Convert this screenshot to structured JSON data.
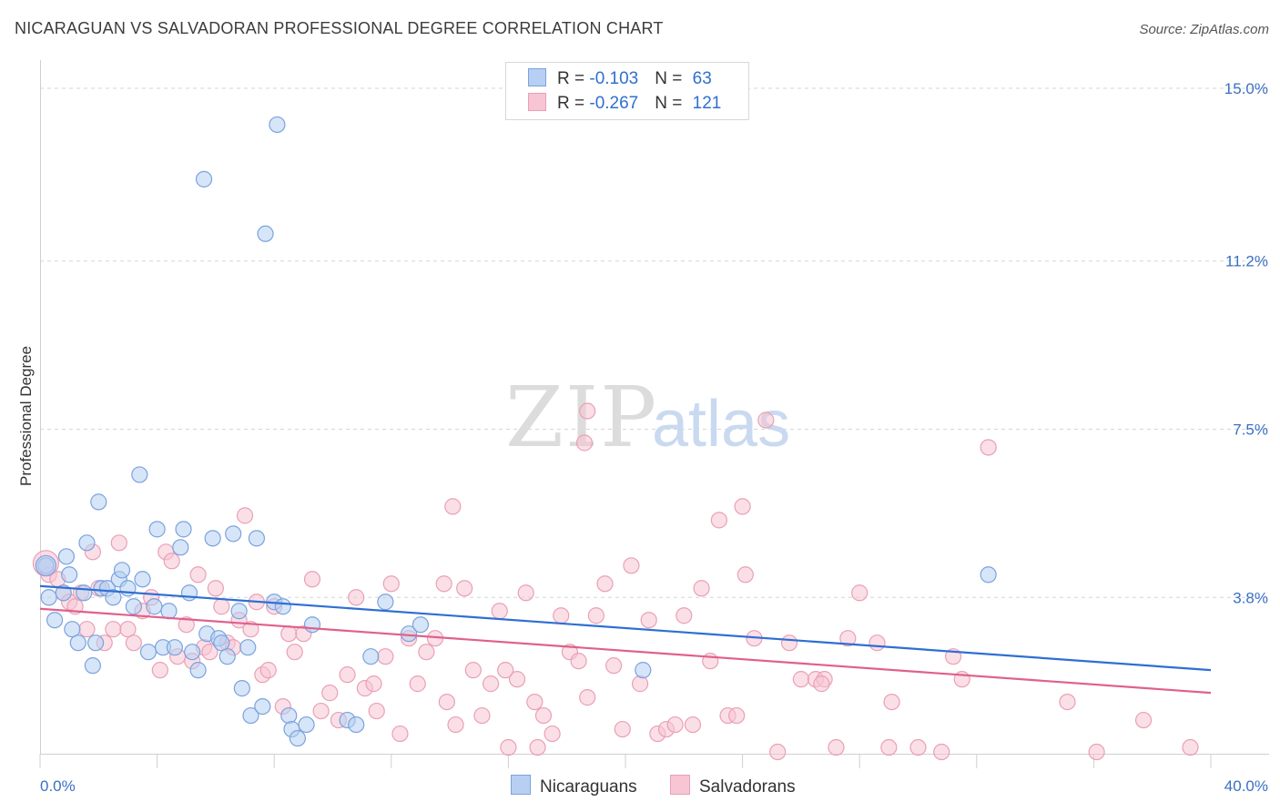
{
  "header": {
    "title": "NICARAGUAN VS SALVADORAN PROFESSIONAL DEGREE CORRELATION CHART",
    "source": "Source: ZipAtlas.com"
  },
  "watermark": {
    "zip": "ZIP",
    "atlas": "atlas"
  },
  "legend": {
    "rows": [
      {
        "r_label": "R = ",
        "r_value": "-0.103",
        "n_label": "N = ",
        "n_value": "63"
      },
      {
        "r_label": "R = ",
        "r_value": "-0.267",
        "n_label": "N = ",
        "n_value": "121"
      }
    ]
  },
  "colors": {
    "blue_fill": "#b7cff3",
    "blue_stroke": "#7aa3dd",
    "blue_line": "#2e6fd3",
    "pink_fill": "#f7c5d4",
    "pink_stroke": "#e9a0b6",
    "pink_line": "#e0608c",
    "grid": "#d6d6d6",
    "tick_text": "#3a6fc4"
  },
  "chart_data": {
    "type": "scatter",
    "title": "NICARAGUAN VS SALVADORAN PROFESSIONAL DEGREE CORRELATION CHART",
    "xlabel": "",
    "ylabel": "Professional Degree",
    "xlim": [
      0,
      40
    ],
    "ylim": [
      0,
      15.7
    ],
    "x_tick_labels": [
      "0.0%",
      "40.0%"
    ],
    "y_ticks": [
      3.8,
      7.5,
      11.2,
      15.0
    ],
    "y_tick_labels": [
      "3.8%",
      "7.5%",
      "11.2%",
      "15.0%"
    ],
    "grid": "horizontal dashed",
    "legend_position": "top-center",
    "series": [
      {
        "name": "Nicaraguans",
        "r": -0.103,
        "n": 63,
        "trend": {
          "x": [
            0,
            40
          ],
          "y": [
            4.05,
            2.2
          ]
        },
        "points": [
          [
            0.2,
            4.5
          ],
          [
            0.3,
            3.8
          ],
          [
            0.5,
            3.3
          ],
          [
            0.8,
            3.9
          ],
          [
            0.9,
            4.7
          ],
          [
            1.1,
            3.1
          ],
          [
            1.3,
            2.8
          ],
          [
            1.5,
            3.9
          ],
          [
            1.6,
            5.0
          ],
          [
            1.8,
            2.3
          ],
          [
            1.9,
            2.8
          ],
          [
            2.1,
            4.0
          ],
          [
            2.3,
            4.0
          ],
          [
            2.5,
            3.8
          ],
          [
            2.7,
            4.2
          ],
          [
            2.8,
            4.4
          ],
          [
            3.0,
            4.0
          ],
          [
            3.2,
            3.6
          ],
          [
            3.4,
            6.5
          ],
          [
            3.5,
            4.2
          ],
          [
            3.7,
            2.6
          ],
          [
            3.9,
            3.6
          ],
          [
            4.0,
            5.3
          ],
          [
            4.2,
            2.7
          ],
          [
            4.4,
            3.5
          ],
          [
            4.6,
            2.7
          ],
          [
            4.8,
            4.9
          ],
          [
            4.9,
            5.3
          ],
          [
            5.1,
            3.9
          ],
          [
            5.2,
            2.6
          ],
          [
            5.4,
            2.2
          ],
          [
            5.6,
            13.0
          ],
          [
            5.7,
            3.0
          ],
          [
            5.9,
            5.1
          ],
          [
            6.1,
            2.9
          ],
          [
            6.2,
            2.8
          ],
          [
            6.4,
            2.5
          ],
          [
            6.6,
            5.2
          ],
          [
            6.8,
            3.5
          ],
          [
            6.9,
            1.8
          ],
          [
            7.1,
            2.7
          ],
          [
            7.2,
            1.2
          ],
          [
            7.4,
            5.1
          ],
          [
            7.6,
            1.4
          ],
          [
            7.7,
            11.8
          ],
          [
            8.0,
            3.7
          ],
          [
            8.1,
            14.2
          ],
          [
            8.3,
            3.6
          ],
          [
            8.5,
            1.2
          ],
          [
            8.6,
            0.9
          ],
          [
            8.8,
            0.7
          ],
          [
            9.1,
            1.0
          ],
          [
            9.3,
            3.2
          ],
          [
            10.5,
            1.1
          ],
          [
            10.8,
            1.0
          ],
          [
            11.3,
            2.5
          ],
          [
            11.8,
            3.7
          ],
          [
            12.6,
            3.0
          ],
          [
            13.0,
            3.2
          ],
          [
            2.0,
            5.9
          ],
          [
            20.6,
            2.2
          ],
          [
            1.0,
            4.3
          ],
          [
            32.4,
            4.3
          ]
        ]
      },
      {
        "name": "Salvadorans",
        "r": -0.267,
        "n": 121,
        "trend": {
          "x": [
            0,
            40
          ],
          "y": [
            3.55,
            1.7
          ]
        },
        "points": [
          [
            0.3,
            4.3
          ],
          [
            0.6,
            4.2
          ],
          [
            0.8,
            3.9
          ],
          [
            1.0,
            3.7
          ],
          [
            1.2,
            3.6
          ],
          [
            1.4,
            3.9
          ],
          [
            1.6,
            3.1
          ],
          [
            1.8,
            4.8
          ],
          [
            2.0,
            4.0
          ],
          [
            2.2,
            2.8
          ],
          [
            2.5,
            3.1
          ],
          [
            2.7,
            5.0
          ],
          [
            3.0,
            3.1
          ],
          [
            3.2,
            2.8
          ],
          [
            3.5,
            3.5
          ],
          [
            3.8,
            3.8
          ],
          [
            4.1,
            2.2
          ],
          [
            4.3,
            4.8
          ],
          [
            4.5,
            4.6
          ],
          [
            4.7,
            2.5
          ],
          [
            5.0,
            3.2
          ],
          [
            5.2,
            2.4
          ],
          [
            5.4,
            4.3
          ],
          [
            5.6,
            2.7
          ],
          [
            5.8,
            2.6
          ],
          [
            6.0,
            4.0
          ],
          [
            6.2,
            3.6
          ],
          [
            6.4,
            2.8
          ],
          [
            6.6,
            2.7
          ],
          [
            6.8,
            3.3
          ],
          [
            7.0,
            5.6
          ],
          [
            7.2,
            3.1
          ],
          [
            7.4,
            3.7
          ],
          [
            7.6,
            2.1
          ],
          [
            7.8,
            2.2
          ],
          [
            8.0,
            3.6
          ],
          [
            8.3,
            1.4
          ],
          [
            8.5,
            3.0
          ],
          [
            8.7,
            2.6
          ],
          [
            9.0,
            3.0
          ],
          [
            9.3,
            4.2
          ],
          [
            9.6,
            1.3
          ],
          [
            9.9,
            1.7
          ],
          [
            10.2,
            1.1
          ],
          [
            10.5,
            2.1
          ],
          [
            10.8,
            3.8
          ],
          [
            11.1,
            1.8
          ],
          [
            11.4,
            1.9
          ],
          [
            11.8,
            2.5
          ],
          [
            12.0,
            4.1
          ],
          [
            12.3,
            0.8
          ],
          [
            12.6,
            2.9
          ],
          [
            12.9,
            1.9
          ],
          [
            13.2,
            2.6
          ],
          [
            13.5,
            2.9
          ],
          [
            13.9,
            1.5
          ],
          [
            14.2,
            1.0
          ],
          [
            14.5,
            4.0
          ],
          [
            14.8,
            2.2
          ],
          [
            15.1,
            1.2
          ],
          [
            15.4,
            1.9
          ],
          [
            15.7,
            3.5
          ],
          [
            16.0,
            0.5
          ],
          [
            16.3,
            2.0
          ],
          [
            16.6,
            3.9
          ],
          [
            16.9,
            1.5
          ],
          [
            17.2,
            1.2
          ],
          [
            17.5,
            0.8
          ],
          [
            17.8,
            3.4
          ],
          [
            18.1,
            2.6
          ],
          [
            18.4,
            2.4
          ],
          [
            18.7,
            1.6
          ],
          [
            19.0,
            3.4
          ],
          [
            19.3,
            4.1
          ],
          [
            19.6,
            2.3
          ],
          [
            19.9,
            0.9
          ],
          [
            20.2,
            4.5
          ],
          [
            20.5,
            1.9
          ],
          [
            20.8,
            3.3
          ],
          [
            21.1,
            0.8
          ],
          [
            21.4,
            0.9
          ],
          [
            21.7,
            1.0
          ],
          [
            22.0,
            3.4
          ],
          [
            22.3,
            1.0
          ],
          [
            22.6,
            4.0
          ],
          [
            22.9,
            2.4
          ],
          [
            23.2,
            5.5
          ],
          [
            23.5,
            1.2
          ],
          [
            23.8,
            1.2
          ],
          [
            24.1,
            4.3
          ],
          [
            24.4,
            2.9
          ],
          [
            24.8,
            7.7
          ],
          [
            25.2,
            0.4
          ],
          [
            25.6,
            2.8
          ],
          [
            26.0,
            2.0
          ],
          [
            26.5,
            2.0
          ],
          [
            26.8,
            2.0
          ],
          [
            27.2,
            0.5
          ],
          [
            27.6,
            2.9
          ],
          [
            28.0,
            3.9
          ],
          [
            28.6,
            2.8
          ],
          [
            29.0,
            0.5
          ],
          [
            30.0,
            0.5
          ],
          [
            30.8,
            0.4
          ],
          [
            31.2,
            2.5
          ],
          [
            31.5,
            2.0
          ],
          [
            32.4,
            7.1
          ],
          [
            35.1,
            1.5
          ],
          [
            36.1,
            0.4
          ],
          [
            37.7,
            1.1
          ],
          [
            39.3,
            0.5
          ],
          [
            18.6,
            7.2
          ],
          [
            18.7,
            7.9
          ],
          [
            14.1,
            5.8
          ],
          [
            24.0,
            5.8
          ],
          [
            13.8,
            4.1
          ],
          [
            11.5,
            1.3
          ],
          [
            17.0,
            0.5
          ],
          [
            26.7,
            1.9
          ],
          [
            15.9,
            2.2
          ],
          [
            29.1,
            1.5
          ]
        ]
      }
    ]
  }
}
